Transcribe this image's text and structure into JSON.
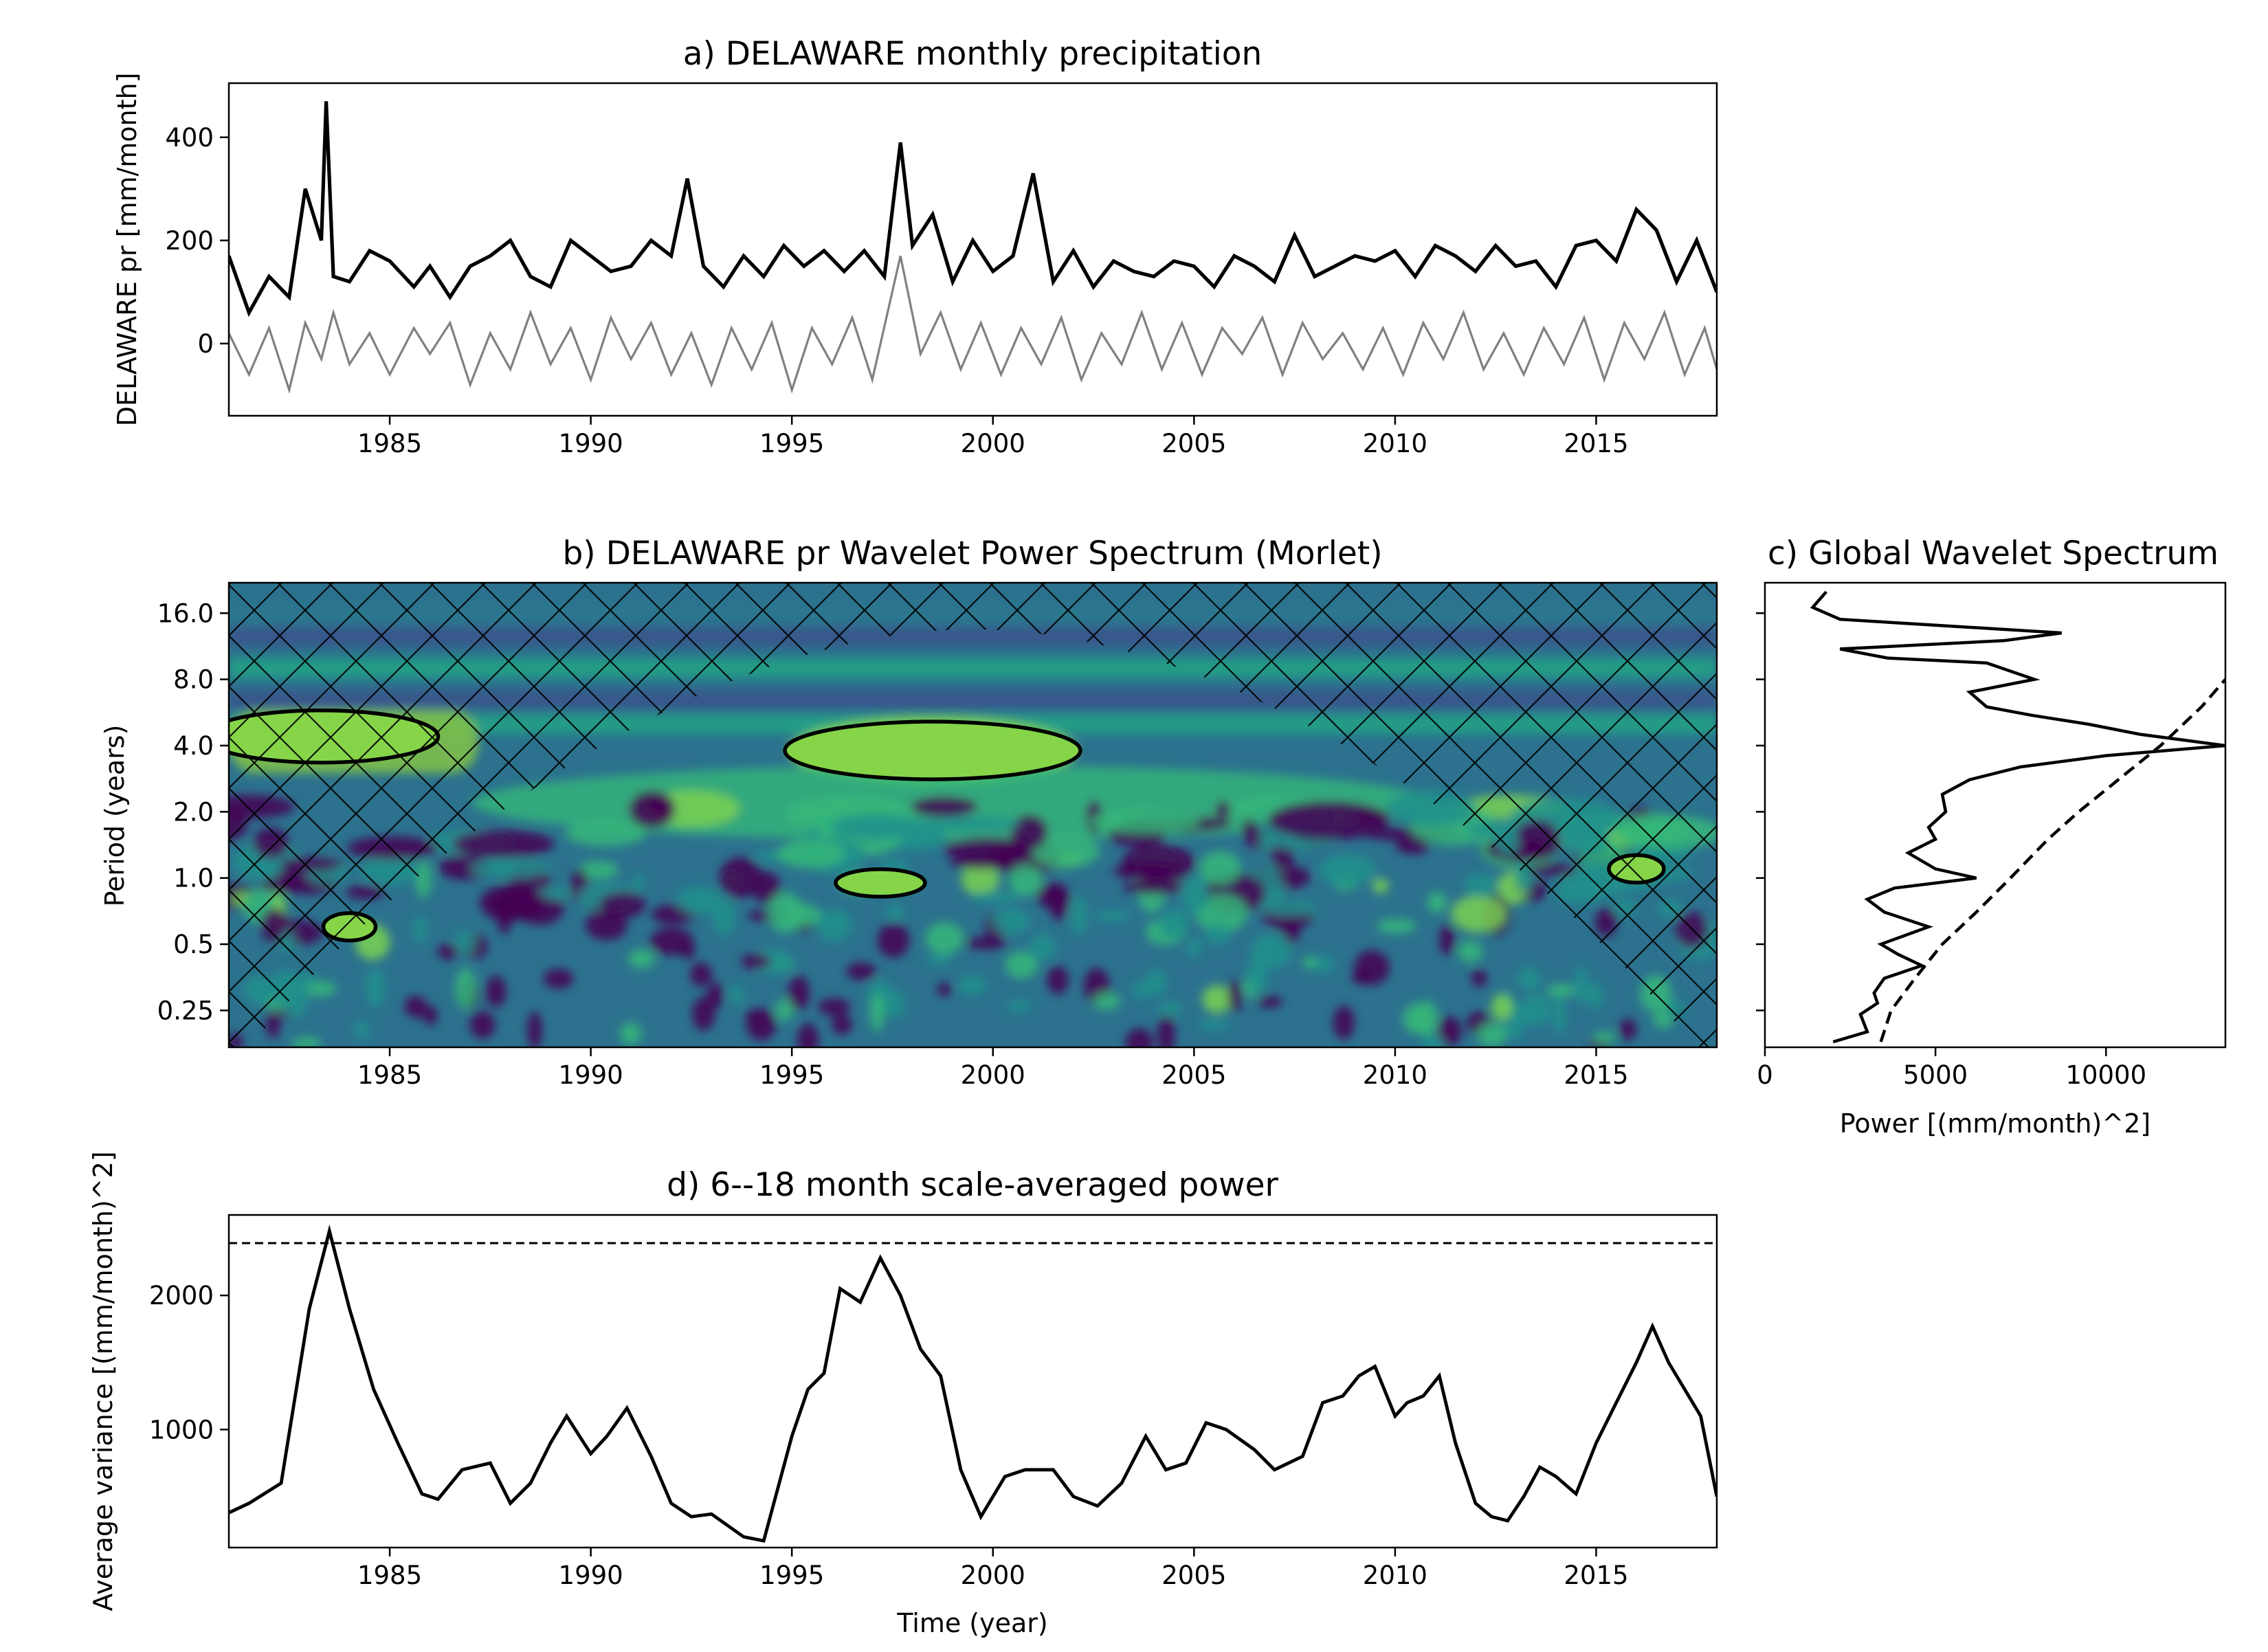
{
  "figure": {
    "chart_data": [
      {
        "type": "line",
        "title": "a) DELAWARE monthly precipitation",
        "xlabel": "",
        "ylabel": "DELAWARE pr [mm/month]",
        "xlim": [
          1981.0,
          2018.0
        ],
        "ylim": [
          -140,
          505
        ],
        "xticks": [
          1985,
          1990,
          1995,
          2000,
          2005,
          2010,
          2015
        ],
        "yticks": [
          0,
          200,
          400
        ],
        "grid": false,
        "series": [
          {
            "role": "raw monthly precipitation",
            "color": "#000000",
            "x": [
              1981.0,
              1981.5,
              1982.0,
              1982.5,
              1982.9,
              1983.3,
              1983.42,
              1983.6,
              1984.0,
              1984.5,
              1985.0,
              1985.6,
              1986.0,
              1986.5,
              1987.0,
              1987.5,
              1988.0,
              1988.5,
              1989.0,
              1989.5,
              1990.0,
              1990.5,
              1991.0,
              1991.5,
              1992.0,
              1992.4,
              1992.8,
              1993.3,
              1993.8,
              1994.3,
              1994.8,
              1995.3,
              1995.8,
              1996.3,
              1996.8,
              1997.3,
              1997.7,
              1998.0,
              1998.5,
              1999.0,
              1999.5,
              2000.0,
              2000.5,
              2001.0,
              2001.5,
              2002.0,
              2002.5,
              2003.0,
              2003.5,
              2004.0,
              2004.5,
              2005.0,
              2005.5,
              2006.0,
              2006.5,
              2007.0,
              2007.5,
              2008.0,
              2008.5,
              2009.0,
              2009.5,
              2010.0,
              2010.5,
              2011.0,
              2011.5,
              2012.0,
              2012.5,
              2013.0,
              2013.5,
              2014.0,
              2014.5,
              2015.0,
              2015.5,
              2016.0,
              2016.5,
              2017.0,
              2017.5,
              2018.0
            ],
            "y": [
              170,
              60,
              130,
              90,
              300,
              200,
              470,
              130,
              120,
              180,
              160,
              110,
              150,
              90,
              150,
              170,
              200,
              130,
              110,
              200,
              170,
              140,
              150,
              200,
              170,
              320,
              150,
              110,
              170,
              130,
              190,
              150,
              180,
              140,
              180,
              130,
              390,
              190,
              250,
              120,
              200,
              140,
              170,
              330,
              120,
              180,
              110,
              160,
              140,
              130,
              160,
              150,
              110,
              170,
              150,
              120,
              210,
              130,
              150,
              170,
              160,
              180,
              130,
              190,
              170,
              140,
              190,
              150,
              160,
              110,
              190,
              200,
              160,
              260,
              220,
              120,
              200,
              100
            ]
          },
          {
            "role": "normalized anomaly",
            "color": "#808080",
            "x": [
              1981.0,
              1981.5,
              1982.0,
              1982.5,
              1982.9,
              1983.3,
              1983.6,
              1984.0,
              1984.5,
              1985.0,
              1985.6,
              1986.0,
              1986.5,
              1987.0,
              1987.5,
              1988.0,
              1988.5,
              1989.0,
              1989.5,
              1990.0,
              1990.5,
              1991.0,
              1991.5,
              1992.0,
              1992.5,
              1993.0,
              1993.5,
              1994.0,
              1994.5,
              1995.0,
              1995.5,
              1996.0,
              1996.5,
              1997.0,
              1997.7,
              1998.2,
              1998.7,
              1999.2,
              1999.7,
              2000.2,
              2000.7,
              2001.2,
              2001.7,
              2002.2,
              2002.7,
              2003.2,
              2003.7,
              2004.2,
              2004.7,
              2005.2,
              2005.7,
              2006.2,
              2006.7,
              2007.2,
              2007.7,
              2008.2,
              2008.7,
              2009.2,
              2009.7,
              2010.2,
              2010.7,
              2011.2,
              2011.7,
              2012.2,
              2012.7,
              2013.2,
              2013.7,
              2014.2,
              2014.7,
              2015.2,
              2015.7,
              2016.2,
              2016.7,
              2017.2,
              2017.7,
              2018.0
            ],
            "y": [
              20,
              -60,
              30,
              -90,
              40,
              -30,
              60,
              -40,
              20,
              -60,
              30,
              -20,
              40,
              -80,
              20,
              -50,
              60,
              -40,
              30,
              -70,
              50,
              -30,
              40,
              -60,
              20,
              -80,
              30,
              -50,
              40,
              -90,
              30,
              -40,
              50,
              -70,
              170,
              -20,
              60,
              -50,
              40,
              -60,
              30,
              -40,
              50,
              -70,
              20,
              -40,
              60,
              -50,
              40,
              -60,
              30,
              -20,
              50,
              -60,
              40,
              -30,
              20,
              -50,
              30,
              -60,
              40,
              -30,
              60,
              -50,
              20,
              -60,
              30,
              -40,
              50,
              -70,
              40,
              -30,
              60,
              -60,
              30,
              -50
            ]
          }
        ]
      },
      {
        "type": "heatmap",
        "title": "b) DELAWARE pr Wavelet Power Spectrum (Morlet)",
        "xlabel": "",
        "ylabel": "Period (years)",
        "xlim": [
          1981.0,
          2018.0
        ],
        "ylim": [
          0.17,
          22
        ],
        "yscale": "log2",
        "xticks": [
          1985,
          1990,
          1995,
          2000,
          2005,
          2010,
          2015
        ],
        "yticks": [
          "16.0",
          "8.0",
          "4.0",
          "2.0",
          "1.0",
          "0.5",
          "0.25"
        ],
        "colormap": "viridis",
        "colors": {
          "low": "#440154",
          "mid": "#21918c",
          "high": "#7ad151"
        },
        "cone_of_influence": true,
        "significance_contours": [
          {
            "x_center": 1998.5,
            "period_center": 3.8
          },
          {
            "x_center": 1983.3,
            "period_center": 4.4
          },
          {
            "x_center": 1997.2,
            "period_center": 0.95
          },
          {
            "x_center": 2016.0,
            "period_center": 1.1
          },
          {
            "x_center": 1984.0,
            "period_center": 0.6
          }
        ]
      },
      {
        "type": "line",
        "title": "c) Global Wavelet Spectrum",
        "xlabel": "Power [(mm/month)^2]",
        "ylabel": "",
        "xlim": [
          0,
          13500
        ],
        "xticks": [
          0,
          5000,
          10000
        ],
        "grid": false,
        "series": [
          {
            "role": "global wavelet power",
            "color": "#000000",
            "style": "solid",
            "period": [
              20.0,
              17.0,
              15.0,
              13.0,
              12.0,
              11.0,
              10.0,
              9.5,
              8.0,
              7.0,
              6.0,
              5.5,
              5.0,
              4.5,
              4.0,
              3.6,
              3.2,
              2.8,
              2.4,
              2.0,
              1.7,
              1.5,
              1.3,
              1.1,
              1.0,
              0.9,
              0.8,
              0.7,
              0.6,
              0.5,
              0.45,
              0.4,
              0.35,
              0.3,
              0.27,
              0.24,
              0.2,
              0.18
            ],
            "power": [
              1800,
              1400,
              2200,
              8700,
              7000,
              2200,
              3600,
              6500,
              7900,
              6000,
              6500,
              7800,
              9500,
              11000,
              13500,
              10000,
              7500,
              6000,
              5200,
              5300,
              4800,
              5000,
              4200,
              5000,
              6200,
              3800,
              3000,
              3500,
              4800,
              3400,
              3900,
              4600,
              3500,
              3200,
              3300,
              2800,
              3000,
              2000
            ]
          },
          {
            "role": "significance level",
            "color": "#000000",
            "style": "dashed",
            "period": [
              0.18,
              0.25,
              0.35,
              0.5,
              0.7,
              1.0,
              1.5,
              2.0,
              3.0,
              4.0,
              6.0,
              8.0
            ],
            "power": [
              3400,
              3700,
              4400,
              5200,
              6200,
              7200,
              8300,
              9200,
              10600,
              11600,
              12800,
              13500
            ]
          }
        ]
      },
      {
        "type": "line",
        "title": "d) 6--18 month scale-averaged power",
        "xlabel": "Time (year)",
        "ylabel": "Average variance [(mm/month)^2]",
        "xlim": [
          1981.0,
          2018.0
        ],
        "ylim": [
          120,
          2600
        ],
        "xticks": [
          1985,
          1990,
          1995,
          2000,
          2005,
          2010,
          2015
        ],
        "yticks": [
          1000,
          2000
        ],
        "grid": false,
        "significance_level": 2390,
        "series": [
          {
            "role": "scale-averaged power",
            "color": "#000000",
            "x": [
              1981.0,
              1981.5,
              1982.3,
              1983.0,
              1983.5,
              1984.0,
              1984.6,
              1985.2,
              1985.8,
              1986.2,
              1986.8,
              1987.5,
              1988.0,
              1988.5,
              1989.0,
              1989.4,
              1990.0,
              1990.4,
              1990.9,
              1991.5,
              1992.0,
              1992.5,
              1993.0,
              1993.8,
              1994.3,
              1995.0,
              1995.4,
              1995.8,
              1996.2,
              1996.7,
              1997.2,
              1997.7,
              1998.2,
              1998.7,
              1999.2,
              1999.7,
              2000.3,
              2000.8,
              2001.5,
              2002.0,
              2002.6,
              2003.2,
              2003.8,
              2004.3,
              2004.8,
              2005.3,
              2005.8,
              2006.5,
              2007.0,
              2007.7,
              2008.2,
              2008.7,
              2009.1,
              2009.5,
              2010.0,
              2010.3,
              2010.7,
              2011.1,
              2011.5,
              2012.0,
              2012.4,
              2012.8,
              2013.2,
              2013.6,
              2014.0,
              2014.5,
              2015.0,
              2015.5,
              2016.0,
              2016.4,
              2016.8,
              2017.2,
              2017.6,
              2018.0
            ],
            "y": [
              380,
              450,
              600,
              1900,
              2480,
              1900,
              1300,
              900,
              520,
              480,
              700,
              750,
              450,
              600,
              900,
              1100,
              820,
              950,
              1160,
              800,
              450,
              350,
              370,
              200,
              170,
              950,
              1300,
              1420,
              2050,
              1950,
              2280,
              2000,
              1600,
              1400,
              700,
              350,
              650,
              700,
              700,
              500,
              430,
              600,
              950,
              700,
              750,
              1050,
              1000,
              850,
              700,
              800,
              1200,
              1250,
              1400,
              1470,
              1100,
              1200,
              1250,
              1400,
              900,
              450,
              350,
              320,
              500,
              720,
              650,
              520,
              900,
              1200,
              1500,
              1770,
              1500,
              1300,
              1100,
              500
            ]
          }
        ]
      }
    ]
  }
}
